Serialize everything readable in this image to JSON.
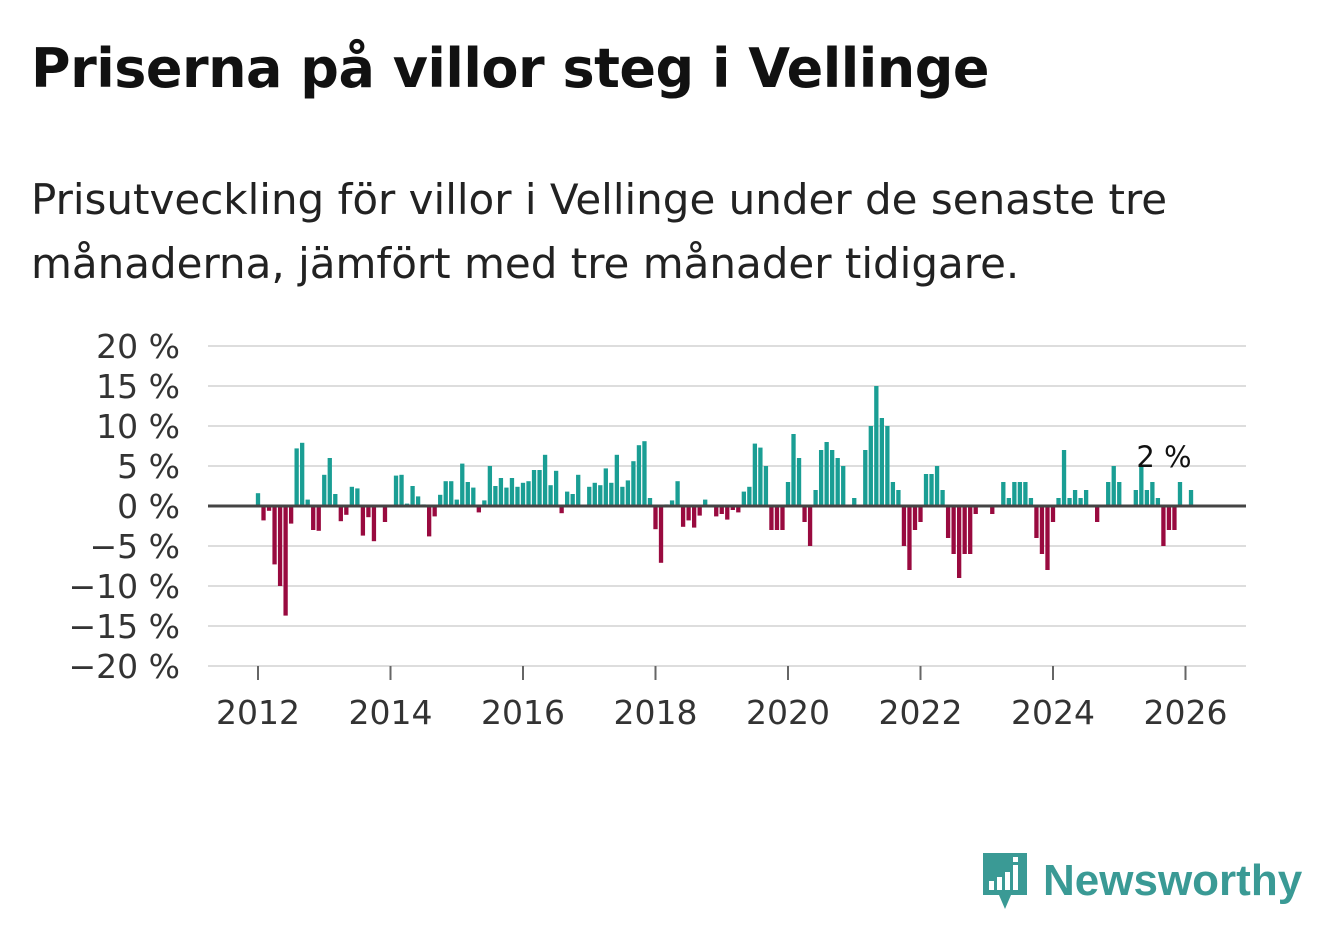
{
  "title": "Priserna på villor steg i Vellinge",
  "subtitle": "Prisutveckling för villor i Vellinge under de senaste tre månaderna, jämfört med tre månader tidigare.",
  "brand": {
    "name": "Newsworthy",
    "color": "#3a9a95",
    "icon": "newsworthy-logo-icon"
  },
  "colors": {
    "positive": "#1a9e94",
    "negative": "#990a3f",
    "grid": "#dddddd",
    "zero_line": "#444444"
  },
  "chart_data": {
    "type": "bar",
    "title": "Priserna på villor steg i Vellinge",
    "xlabel": "",
    "ylabel": "",
    "ylim": [
      -20,
      20
    ],
    "yticks": [
      20,
      15,
      10,
      5,
      0,
      -5,
      -10,
      -15,
      -20
    ],
    "ytick_labels": [
      "20 %",
      "15 %",
      "10 %",
      "5 %",
      "0 %",
      "−5 %",
      "−10 %",
      "−15 %",
      "−20 %"
    ],
    "xticks": [
      "2012",
      "2014",
      "2016",
      "2018",
      "2020",
      "2022",
      "2024",
      "2026"
    ],
    "start": {
      "year": 2012,
      "month": 1
    },
    "end_label": "2 %",
    "values": [
      1.6,
      -1.8,
      -0.6,
      -7.3,
      -10.0,
      -13.7,
      -2.2,
      7.2,
      7.9,
      0.8,
      -3.0,
      -3.1,
      3.9,
      6.0,
      1.5,
      -1.9,
      -1.1,
      2.4,
      2.2,
      -3.7,
      -1.4,
      -4.4,
      0.1,
      -2.0,
      0.1,
      3.8,
      3.9,
      0.3,
      2.5,
      1.2,
      0.2,
      -3.8,
      -1.3,
      1.4,
      3.1,
      3.1,
      0.8,
      5.3,
      3.0,
      2.3,
      -0.8,
      0.7,
      5.0,
      2.5,
      3.5,
      2.3,
      3.5,
      2.4,
      2.9,
      3.1,
      4.5,
      4.5,
      6.4,
      2.6,
      4.4,
      -0.9,
      1.8,
      1.5,
      3.9,
      0.1,
      2.4,
      2.9,
      2.6,
      4.7,
      2.9,
      6.4,
      2.4,
      3.2,
      5.6,
      7.6,
      8.1,
      1.0,
      -2.9,
      -7.1,
      0.2,
      0.7,
      3.1,
      -2.6,
      -1.8,
      -2.7,
      -1.2,
      0.8,
      0.1,
      -1.3,
      -1.0,
      -1.7,
      -0.5,
      -0.8,
      1.8,
      2.4,
      7.8,
      7.3,
      5.0,
      -3.0,
      -3.0,
      -3.0,
      3.0,
      9.0,
      6.0,
      -2.0,
      -5.0,
      2.0,
      7.0,
      8.0,
      7.0,
      6.0,
      5.0,
      0.0,
      1.0,
      0.0,
      7.0,
      10.0,
      15.0,
      11.0,
      10.0,
      3.0,
      2.0,
      -5.0,
      -8.0,
      -3.0,
      -2.0,
      4.0,
      4.0,
      5.0,
      2.0,
      -4.0,
      -6.0,
      -9.0,
      -6.0,
      -6.0,
      -1.0,
      0.0,
      0.0,
      -1.0,
      0.0,
      3.0,
      1.0,
      3.0,
      3.0,
      3.0,
      1.0,
      -4.0,
      -6.0,
      -8.0,
      -2.0,
      1.0,
      7.0,
      1.0,
      2.0,
      1.0,
      2.0,
      0.0,
      -2.0,
      0.0,
      3.0,
      5.0,
      3.0,
      0.0,
      0.0,
      2.0,
      5.0,
      2.0,
      3.0,
      1.0,
      -5.0,
      -3.0,
      -3.0,
      3.0,
      0.0,
      2.0
    ]
  }
}
